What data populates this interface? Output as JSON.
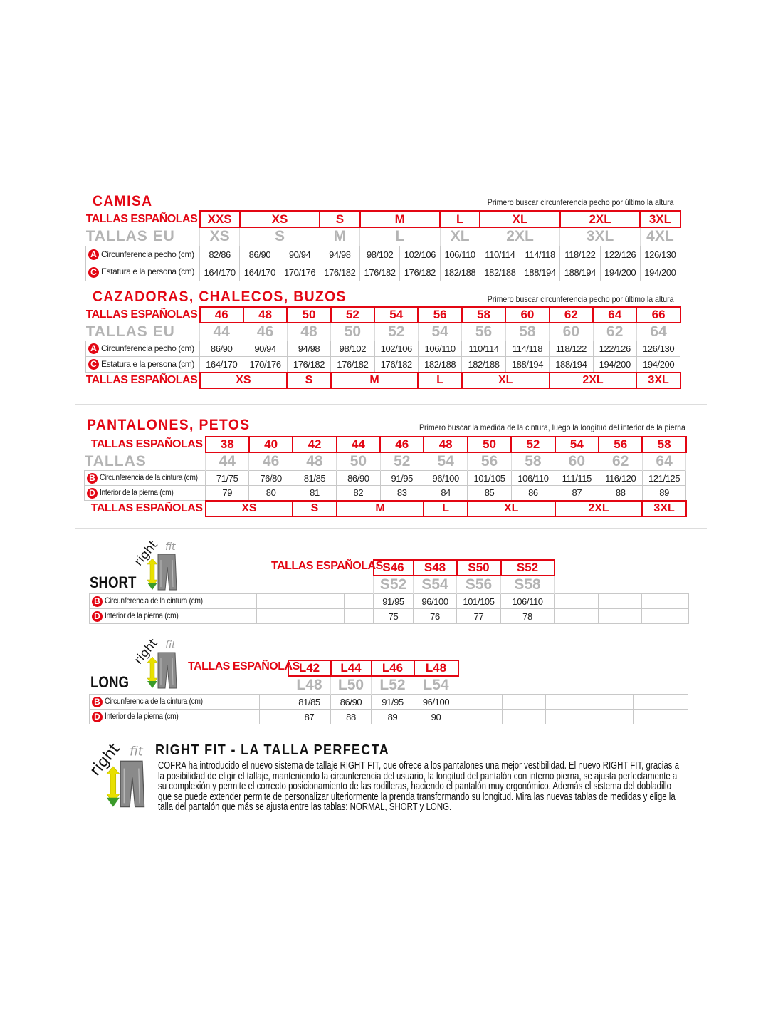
{
  "colors": {
    "accent": "#e30613",
    "eu_gray": "#b4b4b4",
    "grid": "#c8c8c8"
  },
  "logo_text": "rightfit",
  "camisa": {
    "title": "CAMISA",
    "note": "Primero buscar circunferencia pecho por último la altura",
    "rows": [
      {
        "type": "es",
        "label": "TALLAS ESPAÑOLAS",
        "cells": [
          {
            "text": "XXS",
            "span": 1
          },
          {
            "text": "XS",
            "span": 2
          },
          {
            "text": "S",
            "span": 1
          },
          {
            "text": "M",
            "span": 2
          },
          {
            "text": "L",
            "span": 1
          },
          {
            "text": "XL",
            "span": 2
          },
          {
            "text": "2XL",
            "span": 2
          },
          {
            "text": "3XL",
            "span": 1
          }
        ]
      },
      {
        "type": "eu",
        "label": "TALLAS EU",
        "cells": [
          {
            "text": "XS",
            "span": 1
          },
          {
            "text": "S",
            "span": 2
          },
          {
            "text": "M",
            "span": 1
          },
          {
            "text": "L",
            "span": 2
          },
          {
            "text": "XL",
            "span": 1
          },
          {
            "text": "2XL",
            "span": 2
          },
          {
            "text": "3XL",
            "span": 2
          },
          {
            "text": "4XL",
            "span": 1
          }
        ]
      },
      {
        "type": "d",
        "badge": "A",
        "label": "Circunferencia pecho (cm)",
        "values": [
          "82/86",
          "86/90",
          "90/94",
          "94/98",
          "98/102",
          "102/106",
          "106/110",
          "110/114",
          "114/118",
          "118/122",
          "122/126",
          "126/130"
        ]
      },
      {
        "type": "d",
        "badge": "C",
        "label": "Estatura e la persona (cm)",
        "values": [
          "164/170",
          "164/170",
          "170/176",
          "176/182",
          "176/182",
          "176/182",
          "182/188",
          "182/188",
          "188/194",
          "188/194",
          "194/200",
          "194/200"
        ]
      }
    ]
  },
  "cazadoras": {
    "title": "CAZADORAS, CHALECOS, BUZOS",
    "note": "Primero buscar circunferencia pecho por último la altura",
    "rows": [
      {
        "type": "es",
        "label": "TALLAS ESPAÑOLAS",
        "values": [
          "46",
          "48",
          "50",
          "52",
          "54",
          "56",
          "58",
          "60",
          "62",
          "64",
          "66"
        ]
      },
      {
        "type": "eu",
        "label": "TALLAS EU",
        "values": [
          "44",
          "46",
          "48",
          "50",
          "52",
          "54",
          "56",
          "58",
          "60",
          "62",
          "64"
        ]
      },
      {
        "type": "d",
        "badge": "A",
        "label": "Circunferencia pecho (cm)",
        "values": [
          "86/90",
          "90/94",
          "94/98",
          "98/102",
          "102/106",
          "106/110",
          "110/114",
          "114/118",
          "118/122",
          "122/126",
          "126/130"
        ]
      },
      {
        "type": "d",
        "badge": "C",
        "label": "Estatura e la persona (cm)",
        "values": [
          "164/170",
          "170/176",
          "176/182",
          "176/182",
          "176/182",
          "182/188",
          "182/188",
          "188/194",
          "188/194",
          "194/200",
          "194/200"
        ]
      },
      {
        "type": "bot",
        "label": "TALLAS ESPAÑOLAS",
        "cells": [
          {
            "text": "XS",
            "span": 2
          },
          {
            "text": "S",
            "span": 1
          },
          {
            "text": "M",
            "span": 2
          },
          {
            "text": "L",
            "span": 1
          },
          {
            "text": "XL",
            "span": 2
          },
          {
            "text": "2XL",
            "span": 2
          },
          {
            "text": "3XL",
            "span": 1
          }
        ]
      }
    ]
  },
  "pantalones": {
    "title": "PANTALONES, PETOS",
    "note": "Primero buscar la medida de la cintura, luego la longitud del interior de la pierna",
    "rows": [
      {
        "type": "es",
        "label": "TALLAS ESPAÑOLAS",
        "values": [
          "38",
          "40",
          "42",
          "44",
          "46",
          "48",
          "50",
          "52",
          "54",
          "56",
          "58"
        ]
      },
      {
        "type": "eu",
        "label": "TALLAS",
        "values": [
          "44",
          "46",
          "48",
          "50",
          "52",
          "54",
          "56",
          "58",
          "60",
          "62",
          "64"
        ]
      },
      {
        "type": "d",
        "badge": "B",
        "label": "Circunferencia de la cintura (cm)",
        "values": [
          "71/75",
          "76/80",
          "81/85",
          "86/90",
          "91/95",
          "96/100",
          "101/105",
          "106/110",
          "111/115",
          "116/120",
          "121/125"
        ]
      },
      {
        "type": "d",
        "badge": "D",
        "label": "Interior de la pierna (cm)",
        "values": [
          "79",
          "80",
          "81",
          "82",
          "83",
          "84",
          "85",
          "86",
          "87",
          "88",
          "89"
        ]
      },
      {
        "type": "bot",
        "label": "TALLAS ESPAÑOLAS",
        "cells": [
          {
            "text": "XS",
            "span": 2
          },
          {
            "text": "S",
            "span": 1
          },
          {
            "text": "M",
            "span": 2
          },
          {
            "text": "L",
            "span": 1
          },
          {
            "text": "XL",
            "span": 2
          },
          {
            "text": "2XL",
            "span": 2
          },
          {
            "text": "3XL",
            "span": 1
          }
        ]
      }
    ]
  },
  "short": {
    "title": "SHORT",
    "es_label": "TALLAS ESPAÑOLAS",
    "rows": [
      {
        "type": "es",
        "label": "",
        "start": 4,
        "values": [
          "S46",
          "S48",
          "S50",
          "S52"
        ]
      },
      {
        "type": "eu",
        "label": "",
        "start": 4,
        "values": [
          "S52",
          "S54",
          "S56",
          "S58"
        ]
      },
      {
        "type": "d",
        "badge": "B",
        "label": "Circunferencia de la cintura (cm)",
        "values": [
          "",
          "",
          "",
          "",
          "91/95",
          "96/100",
          "101/105",
          "106/110",
          "",
          "",
          ""
        ]
      },
      {
        "type": "d",
        "badge": "D",
        "label": "Interior de la pierna (cm)",
        "values": [
          "",
          "",
          "",
          "",
          "75",
          "76",
          "77",
          "78",
          "",
          "",
          ""
        ]
      }
    ]
  },
  "long": {
    "title": "LONG",
    "es_label": "TALLAS ESPAÑOLAS",
    "rows": [
      {
        "type": "es",
        "label": "",
        "start": 2,
        "values": [
          "L42",
          "L44",
          "L46",
          "L48"
        ]
      },
      {
        "type": "eu",
        "label": "",
        "start": 2,
        "values": [
          "L48",
          "L50",
          "L52",
          "L54"
        ]
      },
      {
        "type": "d",
        "badge": "B",
        "label": "Circunferencia de la cintura (cm)",
        "values": [
          "",
          "",
          "81/85",
          "86/90",
          "91/95",
          "96/100",
          "",
          "",
          "",
          "",
          ""
        ]
      },
      {
        "type": "d",
        "badge": "D",
        "label": "Interior de la pierna (cm)",
        "values": [
          "",
          "",
          "87",
          "88",
          "89",
          "90",
          "",
          "",
          "",
          "",
          ""
        ]
      }
    ]
  },
  "rightfit": {
    "title": "RIGHT FIT - LA TALLA PERFECTA",
    "text": "COFRA ha introducido el nuevo sistema de tallaje RIGHT FIT, que ofrece a los pantalones una mejor vestibilidad. El nuevo RIGHT FIT, gracias a la posibilidad de eligir el tallaje, manteniendo la circunferencia del usuario, la longitud del pantalón con interno pierna, se ajusta perfectamente a su complexión y permite el correcto posicionamiento de las rodilleras, haciendo el pantalón muy ergonómico. Además el sistema del dobladillo que se puede extender permite de personalizar ulteriormente la prenda transformando su longitud. Mira las nuevas tablas de medidas y elige la talla del pantalón que más se ajusta entre las tablas: NORMAL, SHORT y LONG."
  }
}
